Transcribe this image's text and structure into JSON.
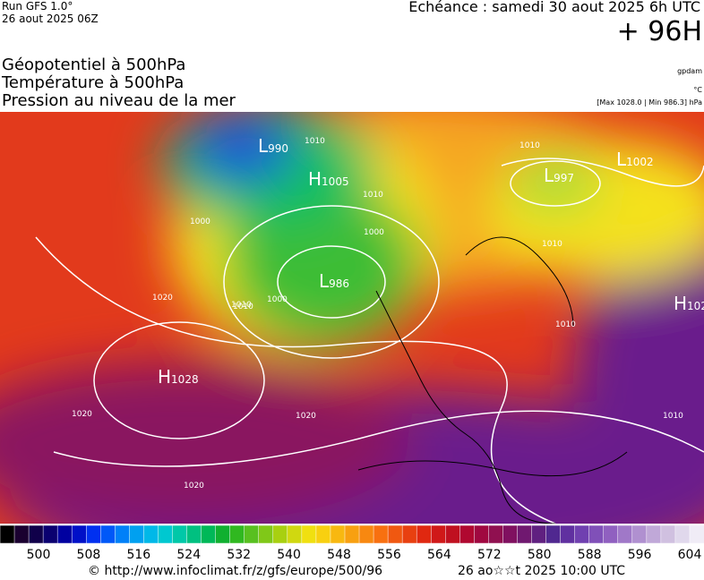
{
  "header": {
    "run": "Run GFS 1.0°",
    "run_date": "26 aout 2025 06Z",
    "valid": "Echéance : samedi 30 aout 2025 6h UTC",
    "lead": "+ 96H",
    "fields": [
      "Géopotentiel à 500hPa",
      "Température à 500hPa",
      "Pression au niveau de la mer"
    ],
    "units": [
      "gpdam",
      "°C",
      "[Max 1028.0 | Min 986.3] hPa"
    ]
  },
  "map": {
    "centers": [
      {
        "letter": "L",
        "value": 990
      },
      {
        "letter": "H",
        "value": 1005
      },
      {
        "letter": "L",
        "value": 986
      },
      {
        "letter": "H",
        "value": 1028
      },
      {
        "letter": "L",
        "value": 997
      },
      {
        "letter": "L",
        "value": 1002
      },
      {
        "letter": "H",
        "value": 102
      }
    ],
    "isobar_labels": [
      1010,
      1010,
      1000,
      1000,
      1010,
      1000,
      1020,
      1010,
      1010,
      1020,
      1020,
      1020,
      1010,
      1010,
      1010
    ]
  },
  "colorbar": {
    "labels": [
      500,
      508,
      516,
      524,
      532,
      540,
      548,
      556,
      564,
      572,
      580,
      588,
      596,
      604
    ]
  },
  "footer": {
    "source": "© http://www.infoclimat.fr/z/gfs/europe/500/96",
    "generated": "26 ao☆☆t 2025 10:00 UTC"
  }
}
